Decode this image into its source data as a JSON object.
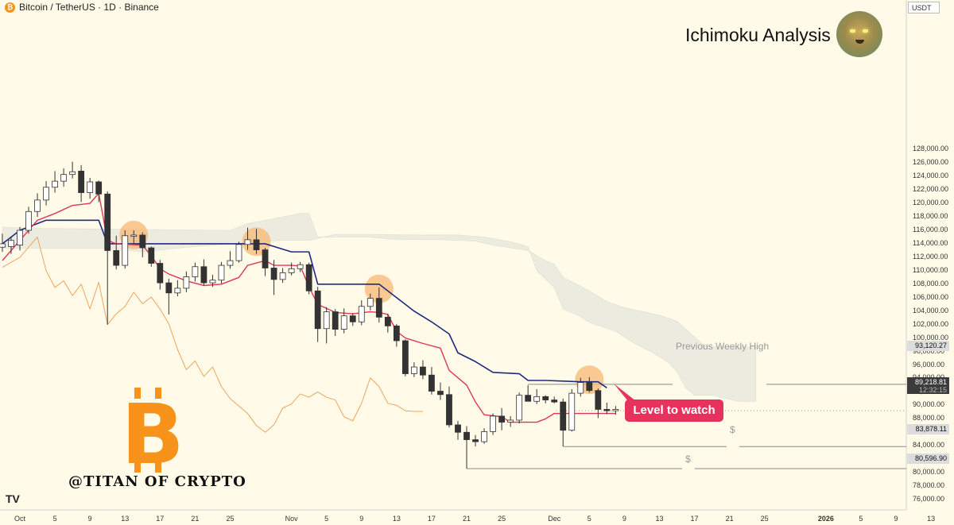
{
  "header": {
    "symbol_text": "Bitcoin / TetherUS · 1D · Binance",
    "coin_glyph": "₿",
    "unit": "USDT"
  },
  "title": "Ichimoku Analysis",
  "brand": {
    "text": "@TITAN OF CRYPTO",
    "logo_glyph": "B",
    "logo_color": "#f7931a"
  },
  "tv_logo": "TV",
  "annotations": {
    "previous_weekly_high": "Previous Weekly High",
    "level_to_watch": "Level to watch",
    "dollar_sign": "$"
  },
  "price_labels": {
    "weekly_high": "93,120.27",
    "current": "89,218.81",
    "countdown": "12:32:15",
    "low_1": "83,878.11",
    "low_2": "80,596.90"
  },
  "colors": {
    "background": "#fffbe8",
    "tenkan": "#e0355a",
    "kijun": "#1f2a80",
    "lagging": "#f0a35a",
    "cloud": "#ecebe0",
    "highlight": "#f7b874",
    "label_red": "#e8325e",
    "bull_body": "#ffffff",
    "bear_body": "#333333"
  },
  "chart_data": {
    "type": "candlestick",
    "interval": "1D",
    "ylim": [
      75000,
      130000
    ],
    "y_ticks": [
      "76,000.00",
      "78,000.00",
      "80,000.00",
      "82,000.00",
      "84,000.00",
      "86,000.00",
      "88,000.00",
      "90,000.00",
      "92,000.00",
      "94,000.00",
      "96,000.00",
      "98,000.00",
      "100,000.00",
      "102,000.00",
      "104,000.00",
      "106,000.00",
      "108,000.00",
      "110,000.00",
      "112,000.00",
      "114,000.00",
      "116,000.00",
      "118,000.00",
      "120,000.00",
      "122,000.00",
      "124,000.00",
      "126,000.00",
      "128,000.00"
    ],
    "x_ticks": [
      {
        "label": "Oct",
        "day": 0
      },
      {
        "label": "5",
        "day": 4
      },
      {
        "label": "9",
        "day": 8
      },
      {
        "label": "13",
        "day": 12
      },
      {
        "label": "17",
        "day": 16
      },
      {
        "label": "21",
        "day": 20
      },
      {
        "label": "25",
        "day": 24
      },
      {
        "label": "Nov",
        "day": 31
      },
      {
        "label": "5",
        "day": 35
      },
      {
        "label": "9",
        "day": 39
      },
      {
        "label": "13",
        "day": 43
      },
      {
        "label": "17",
        "day": 47
      },
      {
        "label": "21",
        "day": 51
      },
      {
        "label": "25",
        "day": 55
      },
      {
        "label": "Dec",
        "day": 61
      },
      {
        "label": "5",
        "day": 65
      },
      {
        "label": "9",
        "day": 69
      },
      {
        "label": "13",
        "day": 73
      },
      {
        "label": "17",
        "day": 77
      },
      {
        "label": "21",
        "day": 81
      },
      {
        "label": "25",
        "day": 85
      },
      {
        "label": "2026",
        "day": 92,
        "bold": true
      },
      {
        "label": "5",
        "day": 96
      },
      {
        "label": "9",
        "day": 100
      },
      {
        "label": "13",
        "day": 104
      }
    ],
    "candles": [
      {
        "d": -2,
        "o": 113500,
        "h": 115500,
        "l": 112800,
        "c": 114000
      },
      {
        "d": -1,
        "o": 113600,
        "h": 115000,
        "l": 112500,
        "c": 114500
      },
      {
        "d": 0,
        "o": 113800,
        "h": 116500,
        "l": 113000,
        "c": 116000
      },
      {
        "d": 1,
        "o": 116000,
        "h": 119500,
        "l": 115500,
        "c": 118800
      },
      {
        "d": 2,
        "o": 118800,
        "h": 121500,
        "l": 118000,
        "c": 120500
      },
      {
        "d": 3,
        "o": 120500,
        "h": 123300,
        "l": 119700,
        "c": 122400
      },
      {
        "d": 4,
        "o": 122400,
        "h": 124800,
        "l": 121600,
        "c": 123300
      },
      {
        "d": 5,
        "o": 123300,
        "h": 125200,
        "l": 122500,
        "c": 124300
      },
      {
        "d": 6,
        "o": 124300,
        "h": 126200,
        "l": 123700,
        "c": 124700
      },
      {
        "d": 7,
        "o": 124800,
        "h": 125700,
        "l": 120200,
        "c": 121600
      },
      {
        "d": 8,
        "o": 121600,
        "h": 123800,
        "l": 120700,
        "c": 123200
      },
      {
        "d": 9,
        "o": 123200,
        "h": 123400,
        "l": 120200,
        "c": 121400
      },
      {
        "d": 10,
        "o": 121400,
        "h": 121800,
        "l": 102000,
        "c": 113000
      },
      {
        "d": 11,
        "o": 113000,
        "h": 115200,
        "l": 110200,
        "c": 110800
      },
      {
        "d": 12,
        "o": 110800,
        "h": 116000,
        "l": 110300,
        "c": 115200
      },
      {
        "d": 13,
        "o": 115100,
        "h": 116000,
        "l": 114000,
        "c": 115300
      },
      {
        "d": 14,
        "o": 115300,
        "h": 115700,
        "l": 112000,
        "c": 113400
      },
      {
        "d": 15,
        "o": 113400,
        "h": 113600,
        "l": 110600,
        "c": 111100
      },
      {
        "d": 16,
        "o": 111100,
        "h": 111600,
        "l": 107200,
        "c": 108200
      },
      {
        "d": 17,
        "o": 108200,
        "h": 108800,
        "l": 103500,
        "c": 106700
      },
      {
        "d": 18,
        "o": 106700,
        "h": 108600,
        "l": 106200,
        "c": 107400
      },
      {
        "d": 19,
        "o": 107400,
        "h": 109900,
        "l": 106800,
        "c": 109100
      },
      {
        "d": 20,
        "o": 109100,
        "h": 111200,
        "l": 108400,
        "c": 110600
      },
      {
        "d": 21,
        "o": 110600,
        "h": 111700,
        "l": 107800,
        "c": 108200
      },
      {
        "d": 22,
        "o": 108200,
        "h": 109400,
        "l": 107600,
        "c": 108600
      },
      {
        "d": 23,
        "o": 108600,
        "h": 111300,
        "l": 108100,
        "c": 110800
      },
      {
        "d": 24,
        "o": 110800,
        "h": 112900,
        "l": 110300,
        "c": 111500
      },
      {
        "d": 25,
        "o": 111500,
        "h": 114300,
        "l": 111200,
        "c": 113900
      },
      {
        "d": 26,
        "o": 113900,
        "h": 116400,
        "l": 113100,
        "c": 114600
      },
      {
        "d": 27,
        "o": 114600,
        "h": 116200,
        "l": 112500,
        "c": 113100
      },
      {
        "d": 28,
        "o": 113100,
        "h": 113400,
        "l": 109200,
        "c": 110400
      },
      {
        "d": 29,
        "o": 110400,
        "h": 111600,
        "l": 106400,
        "c": 108700
      },
      {
        "d": 30,
        "o": 108700,
        "h": 110400,
        "l": 108200,
        "c": 109700
      },
      {
        "d": 31,
        "o": 109700,
        "h": 111200,
        "l": 109300,
        "c": 110300
      },
      {
        "d": 32,
        "o": 110300,
        "h": 111300,
        "l": 109800,
        "c": 110900
      },
      {
        "d": 33,
        "o": 110900,
        "h": 111200,
        "l": 106500,
        "c": 107000
      },
      {
        "d": 34,
        "o": 107000,
        "h": 107600,
        "l": 99400,
        "c": 101400
      },
      {
        "d": 35,
        "o": 101400,
        "h": 104600,
        "l": 99200,
        "c": 103900
      },
      {
        "d": 36,
        "o": 103900,
        "h": 104300,
        "l": 100300,
        "c": 101300
      },
      {
        "d": 37,
        "o": 101300,
        "h": 104400,
        "l": 100700,
        "c": 103300
      },
      {
        "d": 38,
        "o": 103300,
        "h": 103700,
        "l": 101800,
        "c": 102400
      },
      {
        "d": 39,
        "o": 102400,
        "h": 105600,
        "l": 101900,
        "c": 104700
      },
      {
        "d": 40,
        "o": 104700,
        "h": 106600,
        "l": 104100,
        "c": 105900
      },
      {
        "d": 41,
        "o": 105900,
        "h": 107500,
        "l": 102300,
        "c": 103100
      },
      {
        "d": 42,
        "o": 103100,
        "h": 103600,
        "l": 100800,
        "c": 101800
      },
      {
        "d": 43,
        "o": 101800,
        "h": 102100,
        "l": 98700,
        "c": 99600
      },
      {
        "d": 44,
        "o": 99600,
        "h": 99800,
        "l": 94300,
        "c": 94700
      },
      {
        "d": 45,
        "o": 94700,
        "h": 96400,
        "l": 94200,
        "c": 95700
      },
      {
        "d": 46,
        "o": 95700,
        "h": 96700,
        "l": 93900,
        "c": 94500
      },
      {
        "d": 47,
        "o": 94500,
        "h": 95700,
        "l": 91600,
        "c": 92100
      },
      {
        "d": 48,
        "o": 92100,
        "h": 93400,
        "l": 90800,
        "c": 91600
      },
      {
        "d": 49,
        "o": 91600,
        "h": 92800,
        "l": 86700,
        "c": 87100
      },
      {
        "d": 50,
        "o": 87100,
        "h": 87700,
        "l": 84900,
        "c": 86000
      },
      {
        "d": 51,
        "o": 86000,
        "h": 86900,
        "l": 80600,
        "c": 84900
      },
      {
        "d": 52,
        "o": 84900,
        "h": 85600,
        "l": 83900,
        "c": 84600
      },
      {
        "d": 53,
        "o": 84600,
        "h": 86600,
        "l": 84300,
        "c": 86100
      },
      {
        "d": 54,
        "o": 86100,
        "h": 88800,
        "l": 85600,
        "c": 88400
      },
      {
        "d": 55,
        "o": 88400,
        "h": 89600,
        "l": 86300,
        "c": 87500
      },
      {
        "d": 56,
        "o": 87500,
        "h": 88400,
        "l": 86800,
        "c": 87800
      },
      {
        "d": 57,
        "o": 87800,
        "h": 91900,
        "l": 87300,
        "c": 91500
      },
      {
        "d": 58,
        "o": 91500,
        "h": 93000,
        "l": 90800,
        "c": 90600
      },
      {
        "d": 59,
        "o": 90600,
        "h": 92400,
        "l": 90200,
        "c": 91300
      },
      {
        "d": 60,
        "o": 91300,
        "h": 91500,
        "l": 90300,
        "c": 90800
      },
      {
        "d": 61,
        "o": 90800,
        "h": 91300,
        "l": 90300,
        "c": 90500
      },
      {
        "d": 62,
        "o": 90500,
        "h": 91000,
        "l": 83900,
        "c": 86300
      },
      {
        "d": 63,
        "o": 86300,
        "h": 92400,
        "l": 86100,
        "c": 91800
      },
      {
        "d": 64,
        "o": 91800,
        "h": 94100,
        "l": 91300,
        "c": 93400
      },
      {
        "d": 65,
        "o": 93400,
        "h": 94200,
        "l": 91900,
        "c": 92200
      },
      {
        "d": 66,
        "o": 92200,
        "h": 92500,
        "l": 88100,
        "c": 89400
      },
      {
        "d": 67,
        "o": 89400,
        "h": 90400,
        "l": 88700,
        "c": 89200
      },
      {
        "d": 68,
        "o": 89200,
        "h": 89900,
        "l": 88600,
        "c": 89400
      }
    ],
    "tenkan": [
      [
        -2,
        111500
      ],
      [
        0,
        114500
      ],
      [
        2,
        117500
      ],
      [
        4,
        118500
      ],
      [
        6,
        119700
      ],
      [
        8,
        120000
      ],
      [
        9,
        121500
      ],
      [
        10,
        114500
      ],
      [
        11,
        114000
      ],
      [
        14,
        113800
      ],
      [
        15,
        112200
      ],
      [
        16,
        110300
      ],
      [
        17,
        109500
      ],
      [
        19,
        108500
      ],
      [
        21,
        107800
      ],
      [
        23,
        108000
      ],
      [
        25,
        109000
      ],
      [
        26,
        110800
      ],
      [
        28,
        111500
      ],
      [
        29,
        110800
      ],
      [
        31,
        110800
      ],
      [
        32,
        110700
      ],
      [
        33,
        107600
      ],
      [
        34,
        105000
      ],
      [
        36,
        103800
      ],
      [
        38,
        103600
      ],
      [
        40,
        103900
      ],
      [
        41,
        103800
      ],
      [
        42,
        103500
      ],
      [
        43,
        101000
      ],
      [
        44,
        100000
      ],
      [
        46,
        99200
      ],
      [
        48,
        98500
      ],
      [
        49,
        95200
      ],
      [
        51,
        93000
      ],
      [
        52,
        90500
      ],
      [
        53,
        88600
      ],
      [
        55,
        88300
      ],
      [
        56,
        87500
      ],
      [
        59,
        87500
      ],
      [
        60,
        88000
      ],
      [
        61,
        88800
      ],
      [
        65,
        88800
      ],
      [
        68,
        88800
      ]
    ],
    "kijun": [
      [
        -2,
        114000
      ],
      [
        0,
        116000
      ],
      [
        3,
        117500
      ],
      [
        8,
        117500
      ],
      [
        9,
        117500
      ],
      [
        10,
        114000
      ],
      [
        28,
        114000
      ],
      [
        31,
        112800
      ],
      [
        33,
        112800
      ],
      [
        34,
        108000
      ],
      [
        41,
        108000
      ],
      [
        43,
        106000
      ],
      [
        45,
        104000
      ],
      [
        47,
        102400
      ],
      [
        49,
        100600
      ],
      [
        50,
        97800
      ],
      [
        52,
        96500
      ],
      [
        54,
        94900
      ],
      [
        57,
        94700
      ],
      [
        58,
        93700
      ],
      [
        60,
        93700
      ],
      [
        62,
        93600
      ],
      [
        64,
        93500
      ],
      [
        66,
        93500
      ],
      [
        67,
        92600
      ]
    ],
    "lagging": [
      [
        -2,
        110500
      ],
      [
        0,
        112000
      ],
      [
        1,
        113500
      ],
      [
        2,
        115000
      ],
      [
        3,
        110000
      ],
      [
        4,
        107500
      ],
      [
        5,
        108500
      ],
      [
        6,
        106300
      ],
      [
        7,
        108000
      ],
      [
        8,
        104300
      ],
      [
        9,
        108300
      ],
      [
        10,
        102000
      ],
      [
        11,
        103600
      ],
      [
        12,
        104700
      ],
      [
        13,
        106800
      ],
      [
        14,
        105100
      ],
      [
        15,
        106100
      ],
      [
        16,
        104300
      ],
      [
        17,
        102100
      ],
      [
        18,
        98300
      ],
      [
        19,
        95300
      ],
      [
        20,
        96600
      ],
      [
        21,
        94300
      ],
      [
        22,
        95700
      ],
      [
        23,
        92800
      ],
      [
        24,
        91000
      ],
      [
        25,
        89900
      ],
      [
        26,
        88800
      ],
      [
        27,
        87000
      ],
      [
        28,
        86000
      ],
      [
        29,
        87100
      ],
      [
        30,
        89600
      ],
      [
        31,
        90200
      ],
      [
        32,
        91700
      ],
      [
        33,
        91200
      ],
      [
        34,
        92000
      ],
      [
        35,
        91200
      ],
      [
        36,
        90800
      ],
      [
        37,
        88300
      ],
      [
        38,
        87700
      ],
      [
        39,
        90300
      ],
      [
        40,
        94100
      ],
      [
        41,
        92800
      ],
      [
        42,
        90300
      ],
      [
        43,
        90000
      ],
      [
        44,
        89200
      ],
      [
        45,
        89100
      ],
      [
        46,
        89100
      ]
    ],
    "cloud_upper": [
      [
        -2,
        116500
      ],
      [
        1,
        116300
      ],
      [
        9,
        116200
      ],
      [
        24,
        116000
      ],
      [
        26,
        117000
      ],
      [
        30,
        118000
      ],
      [
        32,
        118500
      ],
      [
        33,
        118500
      ],
      [
        34,
        115000
      ],
      [
        40,
        115000
      ],
      [
        43,
        114600
      ],
      [
        48,
        114600
      ],
      [
        52,
        114400
      ],
      [
        54,
        113800
      ],
      [
        58,
        113000
      ],
      [
        60,
        111500
      ],
      [
        61,
        111000
      ],
      [
        62,
        109000
      ],
      [
        64,
        107700
      ],
      [
        65,
        107000
      ],
      [
        67,
        105400
      ],
      [
        69,
        104500
      ],
      [
        73,
        103400
      ],
      [
        75,
        102500
      ],
      [
        78,
        99000
      ],
      [
        79,
        98700
      ],
      [
        84,
        98700
      ]
    ],
    "cloud_lower": [
      [
        -2,
        113300
      ],
      [
        10,
        113300
      ],
      [
        14,
        112800
      ],
      [
        20,
        113600
      ],
      [
        24,
        114000
      ],
      [
        30,
        114500
      ],
      [
        33,
        114500
      ],
      [
        36,
        115400
      ],
      [
        40,
        115400
      ],
      [
        46,
        115300
      ],
      [
        50,
        115300
      ],
      [
        53,
        115000
      ],
      [
        56,
        114300
      ],
      [
        58,
        113600
      ],
      [
        59,
        110000
      ],
      [
        61,
        107500
      ],
      [
        62,
        104300
      ],
      [
        64,
        103200
      ],
      [
        65,
        102300
      ],
      [
        68,
        101000
      ],
      [
        70,
        99300
      ],
      [
        72,
        98000
      ],
      [
        74,
        96400
      ],
      [
        75,
        95000
      ],
      [
        76,
        92600
      ],
      [
        77,
        91500
      ],
      [
        79,
        91500
      ],
      [
        82,
        90600
      ],
      [
        84,
        90600
      ]
    ],
    "highlights": [
      {
        "d": 13,
        "price": 115300
      },
      {
        "d": 27,
        "price": 114300
      },
      {
        "d": 41,
        "price": 107300
      },
      {
        "d": 65,
        "price": 93800
      }
    ],
    "levels": {
      "weekly_high": {
        "price": 93120.27,
        "from_day": 58
      },
      "low_1": {
        "price": 83878.11,
        "from_day": 62
      },
      "low_2": {
        "price": 80596.9,
        "from_day": 51
      },
      "current": {
        "price": 89218.81
      }
    }
  }
}
